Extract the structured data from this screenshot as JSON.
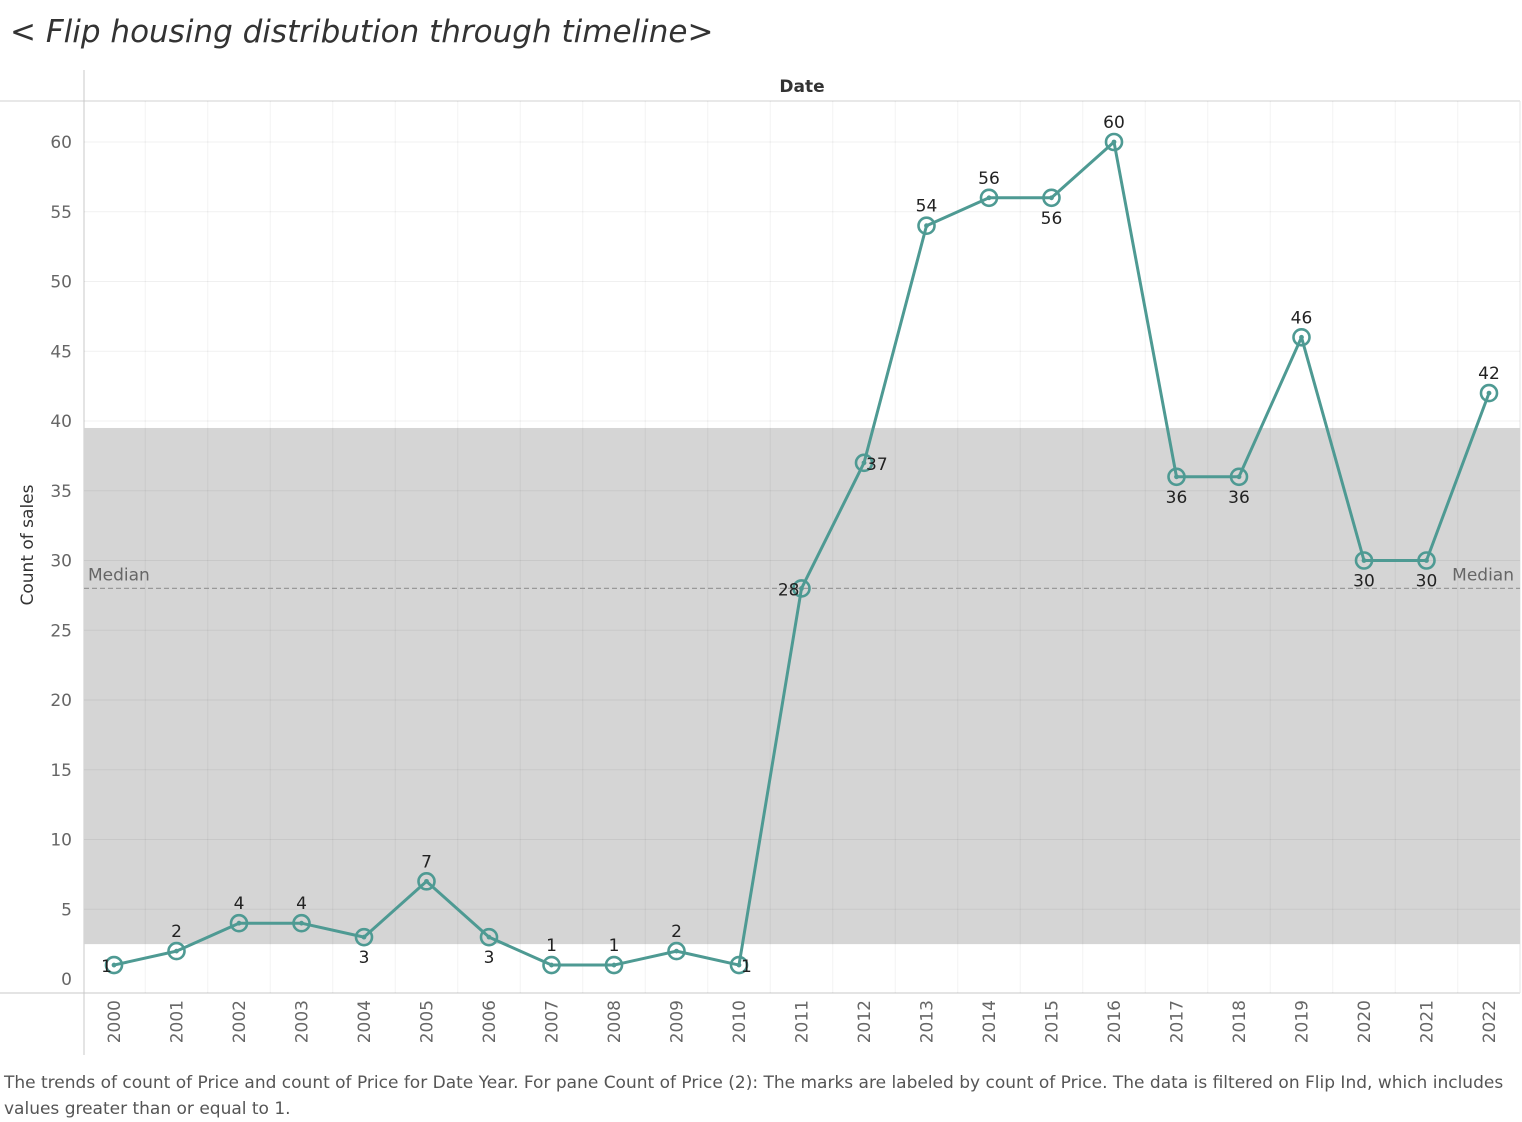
{
  "title": "< Flip housing distribution through timeline>",
  "caption": "The trends of count of Price and count of Price for Date Year.  For pane Count of Price (2):  The marks are labeled by count of Price. The data is filtered on Flip Ind, which includes values greater than or equal to 1.",
  "chart_data": {
    "type": "line",
    "header": "Date",
    "ylabel": "Count of sales",
    "x": [
      "2000",
      "2001",
      "2002",
      "2003",
      "2004",
      "2005",
      "2006",
      "2007",
      "2008",
      "2009",
      "2010",
      "2011",
      "2012",
      "2013",
      "2014",
      "2015",
      "2016",
      "2017",
      "2018",
      "2019",
      "2020",
      "2021",
      "2022"
    ],
    "series": [
      {
        "values": [
          1,
          2,
          4,
          4,
          3,
          7,
          3,
          1,
          1,
          2,
          1,
          28,
          37,
          54,
          56,
          56,
          60,
          36,
          36,
          46,
          30,
          30,
          42
        ]
      }
    ],
    "label_position": [
      "left",
      "above",
      "above",
      "above",
      "below",
      "above",
      "below",
      "above",
      "above",
      "above",
      "right",
      "left",
      "right",
      "above",
      "above",
      "below",
      "above",
      "below",
      "below",
      "above",
      "below",
      "below",
      "above"
    ],
    "ylim": [
      0,
      63
    ],
    "yticks": [
      0,
      5,
      10,
      15,
      20,
      25,
      30,
      35,
      40,
      45,
      50,
      55,
      60
    ],
    "median": 28,
    "median_label": "Median",
    "band": [
      2.5,
      39.5
    ],
    "grid": true,
    "colors": {
      "line": "#4e9a93",
      "band": "#d5d5d5",
      "median": "#999999"
    }
  }
}
